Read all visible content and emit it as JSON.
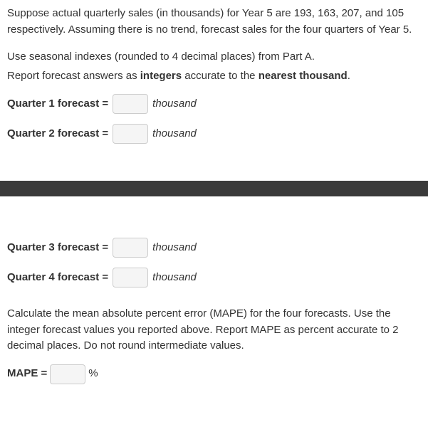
{
  "intro": {
    "paragraph1": "Suppose actual quarterly sales (in thousands) for Year 5 are 193, 163, 207, and 105 respectively. Assuming there is no trend, forecast sales for the four quarters of Year 5.",
    "line1": "Use seasonal indexes (rounded to 4 decimal places) from Part A.",
    "line2_prefix": "Report forecast answers as ",
    "line2_bold1": "integers",
    "line2_mid": " accurate to the ",
    "line2_bold2": "nearest thousand",
    "line2_suffix": "."
  },
  "forecasts": {
    "q1": {
      "label": "Quarter 1 forecast =",
      "unit": "thousand"
    },
    "q2": {
      "label": "Quarter 2 forecast =",
      "unit": "thousand"
    },
    "q3": {
      "label": "Quarter 3 forecast =",
      "unit": "thousand"
    },
    "q4": {
      "label": "Quarter 4 forecast =",
      "unit": "thousand"
    }
  },
  "mape": {
    "text": "Calculate the mean absolute percent error (MAPE) for the four forecasts. Use the integer forecast values you reported above. Report MAPE as percent accurate to 2 decimal places. Do not round intermediate values.",
    "label": "MAPE =",
    "unit": "%"
  }
}
